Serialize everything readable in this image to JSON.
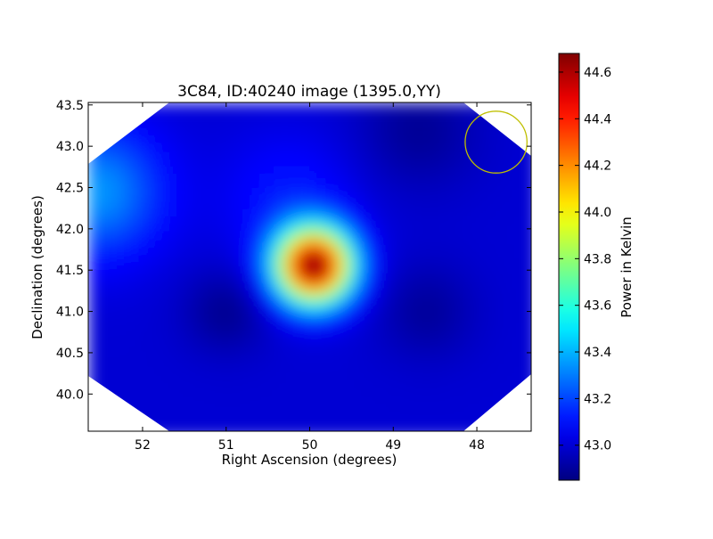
{
  "chart_data": {
    "type": "heatmap",
    "title": "3C84, ID:40240 image (1395.0,YY)",
    "xlabel": "Right Ascension (degrees)",
    "ylabel": "Declination (degrees)",
    "xlim": [
      52.65,
      47.35
    ],
    "ylim": [
      39.55,
      43.53
    ],
    "x_ticks": [
      {
        "value": 52,
        "label": "52"
      },
      {
        "value": 51,
        "label": "51"
      },
      {
        "value": 50,
        "label": "50"
      },
      {
        "value": 49,
        "label": "49"
      },
      {
        "value": 48,
        "label": "48"
      }
    ],
    "y_ticks": [
      {
        "value": 40.0,
        "label": "40.0"
      },
      {
        "value": 40.5,
        "label": "40.5"
      },
      {
        "value": 41.0,
        "label": "41.0"
      },
      {
        "value": 41.5,
        "label": "41.5"
      },
      {
        "value": 42.0,
        "label": "42.0"
      },
      {
        "value": 42.5,
        "label": "42.5"
      },
      {
        "value": 43.0,
        "label": "43.0"
      },
      {
        "value": 43.5,
        "label": "43.5"
      }
    ],
    "colorbar": {
      "label": "Power in Kelvin",
      "range": [
        42.85,
        44.68
      ],
      "ticks": [
        {
          "value": 43.0,
          "label": "43.0"
        },
        {
          "value": 43.2,
          "label": "43.2"
        },
        {
          "value": 43.4,
          "label": "43.4"
        },
        {
          "value": 43.6,
          "label": "43.6"
        },
        {
          "value": 43.8,
          "label": "43.8"
        },
        {
          "value": 44.0,
          "label": "44.0"
        },
        {
          "value": 44.2,
          "label": "44.2"
        },
        {
          "value": 44.4,
          "label": "44.4"
        },
        {
          "value": 44.6,
          "label": "44.6"
        }
      ],
      "colormap": "jet"
    },
    "background_level": 43.0,
    "sources": [
      {
        "ra": 49.95,
        "dec": 41.55,
        "peak": 44.68,
        "sigma": 0.32
      },
      {
        "ra": 52.55,
        "dec": 42.45,
        "peak": 43.35,
        "sigma": 0.55
      },
      {
        "ra": 50.25,
        "dec": 42.35,
        "peak": 43.12,
        "sigma": 0.55
      }
    ],
    "beam_circle": {
      "ra": 47.77,
      "dec": 43.05,
      "radius_deg": 0.37,
      "color": "#bfbf00"
    },
    "grid": false
  }
}
